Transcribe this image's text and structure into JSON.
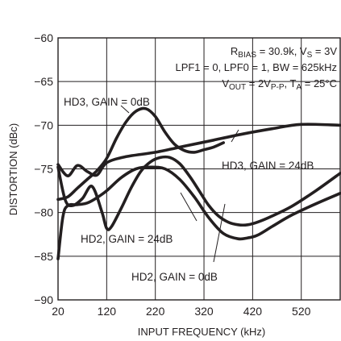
{
  "chart_data": {
    "type": "line",
    "title": "",
    "xlabel": "INPUT FREQUENCY (kHz)",
    "ylabel": "DISTORTION (dBc)",
    "xlim": [
      20,
      600
    ],
    "ylim": [
      -90,
      -60
    ],
    "xticks": [
      20,
      120,
      220,
      320,
      420,
      520
    ],
    "yticks": [
      -90,
      -85,
      -80,
      -75,
      -70,
      -65,
      -60
    ],
    "grid": true,
    "conditions": [
      {
        "base": "R",
        "sub": "BIAS",
        "mid": " = 30.9k, V",
        "sub2": "S",
        "tail": " = 3V"
      },
      {
        "text": "LPF1 = 0, LPF0 = 1, BW = 625kHz"
      },
      {
        "base": "V",
        "sub": "OUT",
        "mid": " = 2V",
        "sub2": "P-P",
        "mid2": ", T",
        "sub3": "A",
        "tail": " = 25°C"
      }
    ],
    "series": [
      {
        "name": "HD3, GAIN = 0dB",
        "x": [
          20,
          40,
          60,
          80,
          100,
          120,
          140,
          160,
          180,
          200,
          220,
          240,
          260,
          280,
          300,
          320,
          340,
          360
        ],
        "y": [
          -78.5,
          -78.2,
          -77.2,
          -76.2,
          -75.2,
          -73.8,
          -71.5,
          -69.6,
          -68.4,
          -68.1,
          -69.0,
          -70.8,
          -72.2,
          -72.9,
          -73.1,
          -72.8,
          -72.5,
          -72.0
        ]
      },
      {
        "name": "HD3, GAIN = 24dB",
        "x": [
          20,
          40,
          60,
          80,
          100,
          120,
          160,
          220,
          280,
          340,
          400,
          460,
          520,
          600
        ],
        "y": [
          -74.5,
          -75.8,
          -74.6,
          -75.3,
          -75.7,
          -74.3,
          -73.6,
          -73.1,
          -72.4,
          -71.7,
          -71.0,
          -70.4,
          -69.9,
          -70.0
        ]
      },
      {
        "name": "HD2, GAIN = 24dB",
        "x": [
          20,
          35,
          50,
          70,
          90,
          110,
          120,
          130,
          150,
          170,
          190,
          210,
          230,
          250,
          270,
          290,
          310,
          330,
          350,
          370,
          390,
          410,
          430,
          460,
          500,
          550,
          600
        ],
        "y": [
          -74.8,
          -78.6,
          -79.2,
          -78.4,
          -77.0,
          -79.9,
          -81.8,
          -81.6,
          -79.5,
          -77.2,
          -75.3,
          -74.2,
          -73.7,
          -73.7,
          -74.4,
          -75.8,
          -77.5,
          -79.2,
          -80.4,
          -81.1,
          -81.4,
          -81.4,
          -81.1,
          -80.4,
          -79.3,
          -77.5,
          -75.5
        ]
      },
      {
        "name": "HD2, GAIN = 0dB",
        "x": [
          20,
          30,
          40,
          60,
          80,
          100,
          120,
          150,
          180,
          210,
          240,
          270,
          300,
          330,
          360,
          390,
          410,
          430,
          460,
          500,
          550,
          600
        ],
        "y": [
          -85.3,
          -80.5,
          -79.2,
          -79.1,
          -78.9,
          -78.3,
          -77.5,
          -76.0,
          -75.0,
          -74.8,
          -75.0,
          -76.2,
          -78.2,
          -80.6,
          -82.4,
          -83.0,
          -82.9,
          -82.6,
          -81.6,
          -80.3,
          -79.0,
          -77.8
        ]
      }
    ],
    "annotations": [
      {
        "text": "HD3, GAIN = 0dB",
        "series": 0
      },
      {
        "text": "HD3, GAIN = 24dB",
        "series": 1
      },
      {
        "text": "HD2, GAIN = 24dB",
        "series": 2
      },
      {
        "text": "HD2, GAIN = 0dB",
        "series": 3
      }
    ]
  }
}
